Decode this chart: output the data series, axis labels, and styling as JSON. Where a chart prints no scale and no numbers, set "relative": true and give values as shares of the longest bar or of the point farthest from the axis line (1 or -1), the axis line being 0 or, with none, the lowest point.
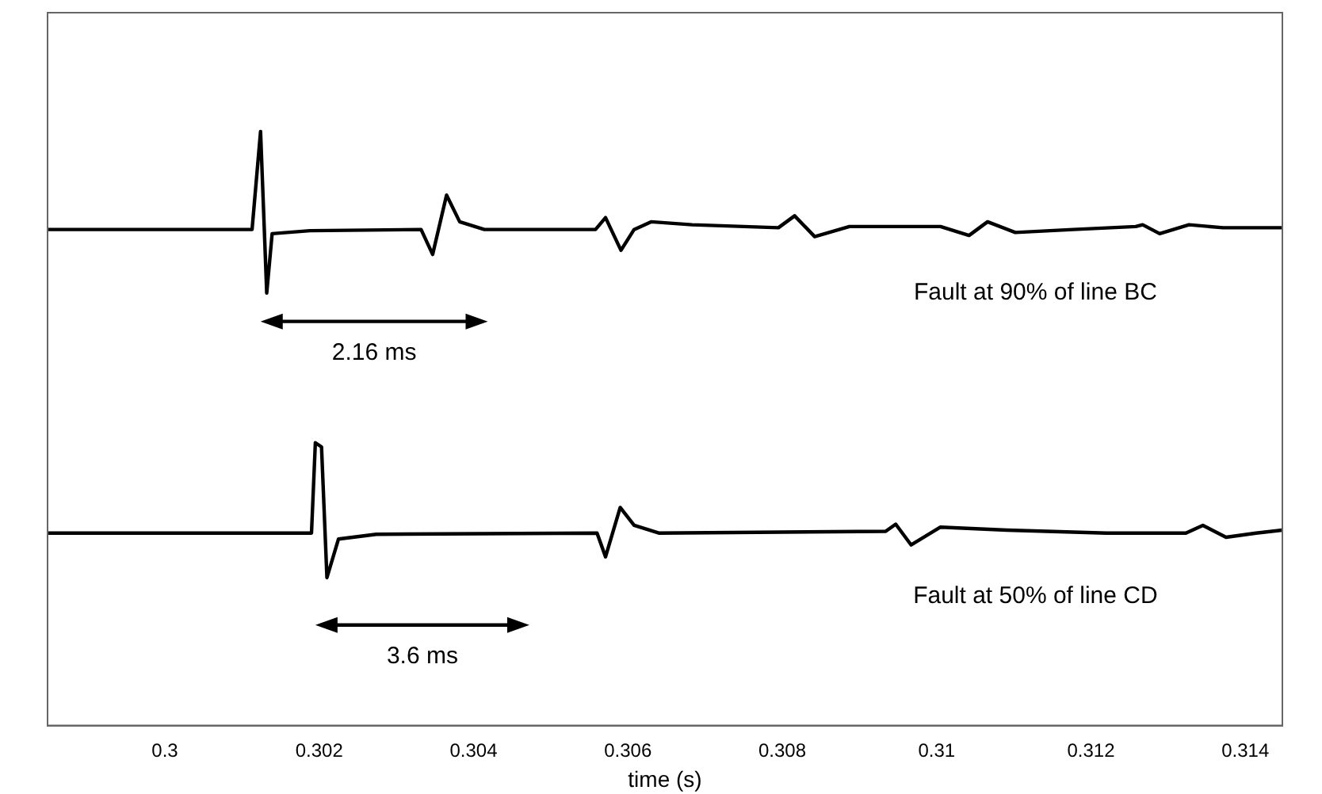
{
  "chart_data": {
    "type": "line",
    "xlabel": "time (s)",
    "relative": true,
    "grid": false,
    "legend": false,
    "marker": "none",
    "line_style": "solid",
    "xlim": [
      0.29848,
      0.31448
    ],
    "xticks": [
      0.3,
      0.302,
      0.304,
      0.306,
      0.308,
      0.31,
      0.312,
      0.314
    ],
    "series": [
      {
        "name": "Fault at 90% of line BC",
        "color": "#000000",
        "x": [
          0.29848,
          0.30113,
          0.30124,
          0.30132,
          0.30139,
          0.30188,
          0.30332,
          0.30347,
          0.30365,
          0.30382,
          0.30414,
          0.30558,
          0.30571,
          0.30591,
          0.30608,
          0.3063,
          0.30683,
          0.30795,
          0.30816,
          0.30842,
          0.30887,
          0.31005,
          0.31042,
          0.31066,
          0.31102,
          0.31177,
          0.31258,
          0.31267,
          0.31289,
          0.31327,
          0.31371,
          0.31448
        ],
        "values": [
          0.835,
          0.835,
          1,
          0.728,
          0.828,
          0.833,
          0.835,
          0.793,
          0.893,
          0.848,
          0.835,
          0.835,
          0.855,
          0.8,
          0.835,
          0.848,
          0.843,
          0.838,
          0.858,
          0.823,
          0.84,
          0.84,
          0.825,
          0.848,
          0.83,
          0.835,
          0.84,
          0.843,
          0.828,
          0.843,
          0.838,
          0.838
        ]
      },
      {
        "name": "Fault at 50% of line CD",
        "color": "#000000",
        "x": [
          0.29848,
          0.3019,
          0.30195,
          0.30203,
          0.3021,
          0.30225,
          0.30274,
          0.3056,
          0.30571,
          0.3059,
          0.30608,
          0.3064,
          0.30934,
          0.30947,
          0.30967,
          0.31005,
          0.31091,
          0.3122,
          0.31323,
          0.31345,
          0.31375,
          0.31414,
          0.31448
        ],
        "values": [
          0.324,
          0.324,
          0.476,
          0.469,
          0.249,
          0.314,
          0.322,
          0.324,
          0.284,
          0.367,
          0.337,
          0.324,
          0.327,
          0.339,
          0.304,
          0.334,
          0.329,
          0.324,
          0.324,
          0.337,
          0.317,
          0.324,
          0.329
        ]
      }
    ],
    "annotations": [
      "2.16 ms",
      "3.6 ms"
    ]
  }
}
